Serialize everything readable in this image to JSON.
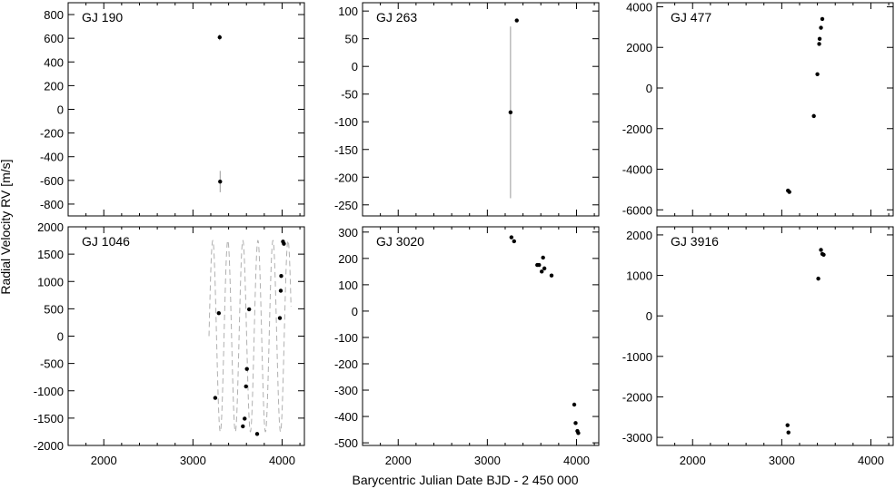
{
  "figure": {
    "xlabel": "Barycentric Julian Date BJD - 2 450 000",
    "ylabel": "Radial Velocity RV [m/s]"
  },
  "chart_data": [
    {
      "type": "scatter",
      "title": "GJ 190",
      "xlim": [
        1600,
        4250
      ],
      "ylim": [
        -900,
        900
      ],
      "xticks": [
        2000,
        3000,
        4000
      ],
      "yticks": [
        -800,
        -600,
        -400,
        -200,
        0,
        200,
        400,
        600,
        800
      ],
      "show_xtick_labels": false,
      "points": [
        {
          "x": 3300,
          "y": 608,
          "err": 25
        },
        {
          "x": 3305,
          "y": -610,
          "err": 90
        }
      ]
    },
    {
      "type": "scatter",
      "title": "GJ 263",
      "xlim": [
        1600,
        4250
      ],
      "ylim": [
        -270,
        115
      ],
      "xticks": [
        2000,
        3000,
        4000
      ],
      "yticks": [
        -250,
        -200,
        -150,
        -100,
        -50,
        0,
        50,
        100
      ],
      "show_xtick_labels": false,
      "points": [
        {
          "x": 3260,
          "y": -83,
          "err": 155
        },
        {
          "x": 3330,
          "y": 83,
          "err": 0
        }
      ]
    },
    {
      "type": "scatter",
      "title": "GJ 477",
      "xlim": [
        1600,
        4250
      ],
      "ylim": [
        -6300,
        4200
      ],
      "xticks": [
        2000,
        3000,
        4000
      ],
      "yticks": [
        -6000,
        -4000,
        -2000,
        0,
        2000,
        4000
      ],
      "show_xtick_labels": false,
      "points": [
        {
          "x": 3070,
          "y": -5050,
          "err": 0
        },
        {
          "x": 3085,
          "y": -5120,
          "err": 0
        },
        {
          "x": 3360,
          "y": -1380,
          "err": 0
        },
        {
          "x": 3400,
          "y": 680,
          "err": 0
        },
        {
          "x": 3420,
          "y": 2170,
          "err": 0
        },
        {
          "x": 3425,
          "y": 2420,
          "err": 0
        },
        {
          "x": 3440,
          "y": 2970,
          "err": 0
        },
        {
          "x": 3455,
          "y": 3400,
          "err": 0
        }
      ]
    },
    {
      "type": "scatter",
      "title": "GJ 1046",
      "xlim": [
        1600,
        4250
      ],
      "ylim": [
        -2000,
        2000
      ],
      "xticks": [
        2000,
        3000,
        4000
      ],
      "yticks": [
        -2000,
        -1500,
        -1000,
        -500,
        0,
        500,
        1000,
        1500,
        2000
      ],
      "show_xtick_labels": true,
      "model_curve": {
        "amplitude": 1750,
        "period": 168.8,
        "x_start": 3180,
        "x_end": 4100
      },
      "points": [
        {
          "x": 3250,
          "y": -1130,
          "err": 0
        },
        {
          "x": 3290,
          "y": 420,
          "err": 0
        },
        {
          "x": 3560,
          "y": -1650,
          "err": 0
        },
        {
          "x": 3580,
          "y": -1510,
          "err": 0
        },
        {
          "x": 3595,
          "y": -920,
          "err": 0
        },
        {
          "x": 3605,
          "y": -600,
          "err": 0
        },
        {
          "x": 3630,
          "y": 490,
          "err": 0
        },
        {
          "x": 3720,
          "y": -1790,
          "err": 0
        },
        {
          "x": 3975,
          "y": 330,
          "err": 0
        },
        {
          "x": 3985,
          "y": 830,
          "err": 0
        },
        {
          "x": 3990,
          "y": 1100,
          "err": 0
        },
        {
          "x": 4010,
          "y": 1730,
          "err": 0
        },
        {
          "x": 4020,
          "y": 1690,
          "err": 0
        }
      ]
    },
    {
      "type": "scatter",
      "title": "GJ 3020",
      "xlim": [
        1600,
        4250
      ],
      "ylim": [
        -510,
        320
      ],
      "xticks": [
        2000,
        3000,
        4000
      ],
      "yticks": [
        -500,
        -400,
        -300,
        -200,
        -100,
        0,
        100,
        200,
        300
      ],
      "show_xtick_labels": true,
      "points": [
        {
          "x": 3270,
          "y": 280,
          "err": 0
        },
        {
          "x": 3300,
          "y": 265,
          "err": 0
        },
        {
          "x": 3560,
          "y": 175,
          "err": 0
        },
        {
          "x": 3580,
          "y": 175,
          "err": 0
        },
        {
          "x": 3610,
          "y": 150,
          "err": 0
        },
        {
          "x": 3625,
          "y": 203,
          "err": 0
        },
        {
          "x": 3640,
          "y": 162,
          "err": 0
        },
        {
          "x": 3720,
          "y": 135,
          "err": 0
        },
        {
          "x": 3975,
          "y": -355,
          "err": 0
        },
        {
          "x": 3990,
          "y": -425,
          "err": 0
        },
        {
          "x": 4010,
          "y": -455,
          "err": 0
        },
        {
          "x": 4020,
          "y": -463,
          "err": 0
        }
      ]
    },
    {
      "type": "scatter",
      "title": "GJ 3916",
      "xlim": [
        1600,
        4250
      ],
      "ylim": [
        -3200,
        2200
      ],
      "xticks": [
        2000,
        3000,
        4000
      ],
      "yticks": [
        -3000,
        -2000,
        -1000,
        0,
        1000,
        2000
      ],
      "show_xtick_labels": true,
      "points": [
        {
          "x": 3065,
          "y": -2700,
          "err": 0
        },
        {
          "x": 3075,
          "y": -2880,
          "err": 0
        },
        {
          "x": 3410,
          "y": 920,
          "err": 0
        },
        {
          "x": 3440,
          "y": 1630,
          "err": 0
        },
        {
          "x": 3455,
          "y": 1530,
          "err": 0
        },
        {
          "x": 3470,
          "y": 1510,
          "err": 0
        }
      ]
    }
  ]
}
